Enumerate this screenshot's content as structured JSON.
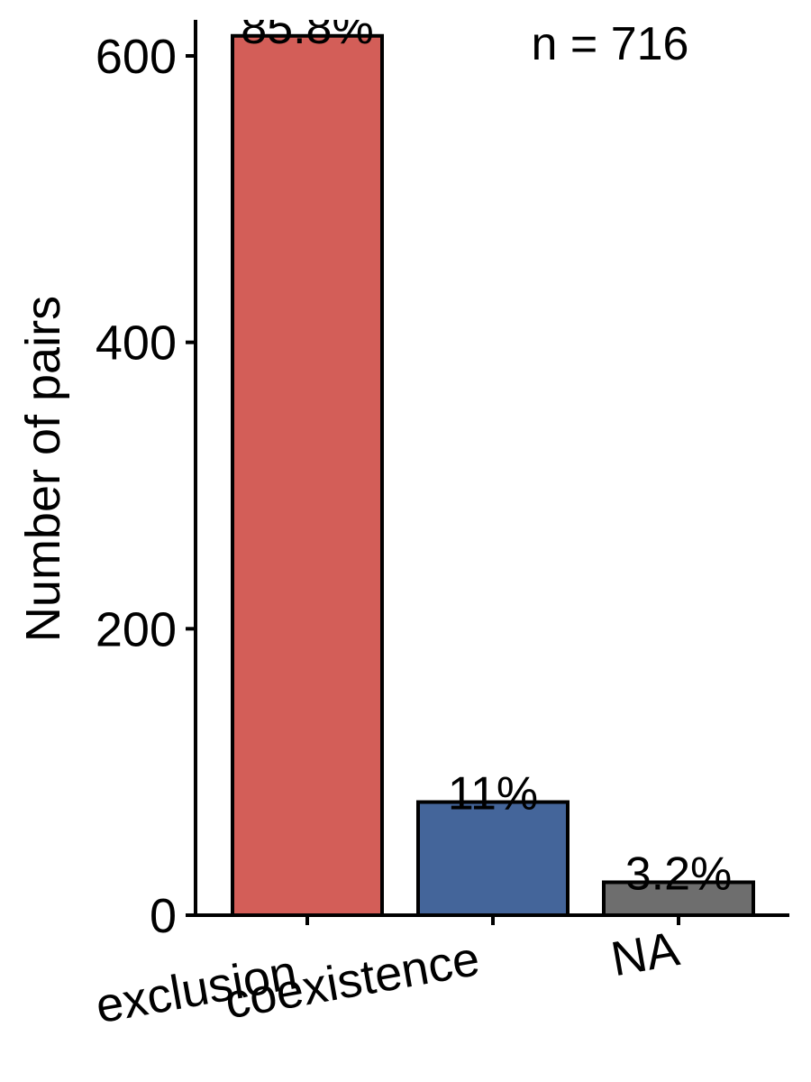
{
  "chart_data": {
    "type": "bar",
    "title": "",
    "xlabel": "",
    "ylabel": "Number of pairs",
    "categories": [
      "exclusion",
      "coexistence",
      "NA"
    ],
    "values": [
      614,
      79,
      23
    ],
    "labels": [
      "85.8%",
      "11%",
      "3.2%"
    ],
    "colors": [
      "#d35e58",
      "#44659a",
      "#6e6e6e"
    ],
    "ylim": [
      0,
      620
    ],
    "yticks": [
      0,
      200,
      400,
      600
    ],
    "annotation": "n = 716",
    "grid": false,
    "legend": "none"
  }
}
